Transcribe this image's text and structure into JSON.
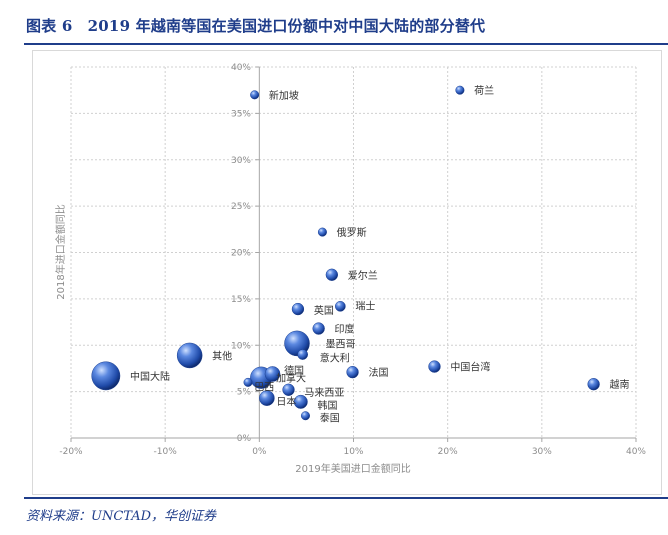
{
  "figure": {
    "title": "图表 6　2019 年越南等国在美国进口份额中对中国大陆的部分替代",
    "source": "资料来源：UNCTAD，华创证券"
  },
  "colors": {
    "accent": "#1f3d8a",
    "bubble": "#2f5fc4",
    "grid": "#d0d0d0"
  },
  "chart_data": {
    "type": "scatter",
    "title": "",
    "xlabel": "2019年美国进口金额同比",
    "ylabel": "2018年进口金额同比",
    "xlim": [
      -20,
      40
    ],
    "ylim": [
      0,
      40
    ],
    "x_ticks": [
      -20,
      -10,
      0,
      10,
      20,
      30,
      40
    ],
    "y_ticks": [
      0,
      5,
      10,
      15,
      20,
      25,
      30,
      35,
      40
    ],
    "x_tick_labels": [
      "-20%",
      "-10%",
      "0%",
      "10%",
      "20%",
      "30%",
      "40%"
    ],
    "y_tick_labels": [
      "0%",
      "5%",
      "10%",
      "15%",
      "20%",
      "25%",
      "30%",
      "35%",
      "40%"
    ],
    "grid": true,
    "points": [
      {
        "label": "荷兰",
        "x": 21.3,
        "y": 37.5,
        "size": 1
      },
      {
        "label": "新加坡",
        "x": -0.5,
        "y": 37.0,
        "size": 1
      },
      {
        "label": "俄罗斯",
        "x": 6.7,
        "y": 22.2,
        "size": 1
      },
      {
        "label": "爱尔兰",
        "x": 7.7,
        "y": 17.6,
        "size": 2
      },
      {
        "label": "瑞士",
        "x": 8.6,
        "y": 14.2,
        "size": 1.5
      },
      {
        "label": "英国",
        "x": 4.1,
        "y": 13.9,
        "size": 2
      },
      {
        "label": "印度",
        "x": 6.3,
        "y": 11.8,
        "size": 2
      },
      {
        "label": "墨西哥",
        "x": 4.0,
        "y": 10.2,
        "size": 6
      },
      {
        "label": "意大利",
        "x": 4.6,
        "y": 9.0,
        "size": 1.5
      },
      {
        "label": "其他",
        "x": -7.4,
        "y": 8.9,
        "size": 6
      },
      {
        "label": "中国台湾",
        "x": 18.6,
        "y": 7.7,
        "size": 2
      },
      {
        "label": "法国",
        "x": 9.9,
        "y": 7.1,
        "size": 2
      },
      {
        "label": "中国大陆",
        "x": -16.3,
        "y": 6.7,
        "size": 7
      },
      {
        "label": "德国",
        "x": 1.4,
        "y": 6.9,
        "size": 3
      },
      {
        "label": "加拿大",
        "x": 0.2,
        "y": 6.5,
        "size": 5
      },
      {
        "label": "巴西",
        "x": -1.2,
        "y": 6.0,
        "size": 1
      },
      {
        "label": "越南",
        "x": 35.5,
        "y": 5.8,
        "size": 2
      },
      {
        "label": "马来西亚",
        "x": 3.1,
        "y": 5.2,
        "size": 2
      },
      {
        "label": "日本",
        "x": 0.8,
        "y": 4.3,
        "size": 3
      },
      {
        "label": "韩国",
        "x": 4.4,
        "y": 3.9,
        "size": 2.5
      },
      {
        "label": "泰国",
        "x": 4.9,
        "y": 2.4,
        "size": 1
      }
    ]
  }
}
